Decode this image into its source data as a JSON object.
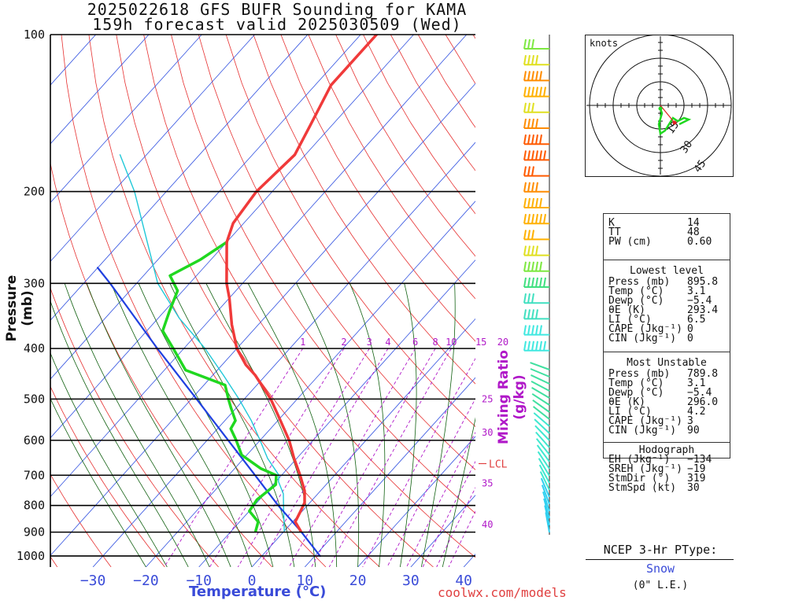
{
  "title_line1": "2025022618 GFS BUFR Sounding for KAMA",
  "title_line2": "159h forecast valid 2025030509 (Wed)",
  "credit": "coolwx.com/models",
  "chart_data": {
    "type": "skew-t",
    "ylabel": "Pressure (mb)",
    "xlabel": "Temperature (°C)",
    "mixing_ratio_label": "Mixing Ratio (g/kg)",
    "pressure_ticks": [
      "100",
      "200",
      "300",
      "400",
      "500",
      "600",
      "700",
      "800",
      "900",
      "1000"
    ],
    "pressure_levels": [
      100,
      200,
      300,
      400,
      500,
      600,
      700,
      800,
      900,
      1000
    ],
    "temp_ticks": [
      "−30",
      "−20",
      "−10",
      "0",
      "10",
      "20",
      "30",
      "40"
    ],
    "temp_values": [
      -30,
      -20,
      -10,
      0,
      10,
      20,
      30,
      40
    ],
    "mixing_ratio_top_labels": [
      "1",
      "2",
      "3",
      "4",
      "6",
      "8",
      "10",
      "15",
      "20"
    ],
    "mixing_ratio_side_labels": [
      "25",
      "30",
      "35",
      "40"
    ],
    "lcl_label": "LCL",
    "lcl_pressure": 665,
    "temperature_profile": [
      {
        "p": 895.8,
        "t": 3.1
      },
      {
        "p": 860,
        "t": 0.5
      },
      {
        "p": 825,
        "t": -0.2
      },
      {
        "p": 790,
        "t": -1.0
      },
      {
        "p": 750,
        "t": -3.0
      },
      {
        "p": 700,
        "t": -6.5
      },
      {
        "p": 650,
        "t": -10.5
      },
      {
        "p": 600,
        "t": -14.5
      },
      {
        "p": 550,
        "t": -19.5
      },
      {
        "p": 500,
        "t": -25
      },
      {
        "p": 450,
        "t": -32
      },
      {
        "p": 430,
        "t": -35.5
      },
      {
        "p": 400,
        "t": -40
      },
      {
        "p": 360,
        "t": -45
      },
      {
        "p": 320,
        "t": -50
      },
      {
        "p": 300,
        "t": -53
      },
      {
        "p": 250,
        "t": -60
      },
      {
        "p": 230,
        "t": -62
      },
      {
        "p": 200,
        "t": -63
      },
      {
        "p": 170,
        "t": -62
      },
      {
        "p": 150,
        "t": -64
      },
      {
        "p": 125,
        "t": -67
      },
      {
        "p": 100,
        "t": -67
      }
    ],
    "dewpoint_profile": [
      {
        "p": 895.8,
        "t": -5.4
      },
      {
        "p": 860,
        "t": -6.5
      },
      {
        "p": 820,
        "t": -10
      },
      {
        "p": 780,
        "t": -10.5
      },
      {
        "p": 730,
        "t": -9.5
      },
      {
        "p": 700,
        "t": -11
      },
      {
        "p": 680,
        "t": -15
      },
      {
        "p": 640,
        "t": -21
      },
      {
        "p": 600,
        "t": -24.5
      },
      {
        "p": 570,
        "t": -27.5
      },
      {
        "p": 550,
        "t": -28
      },
      {
        "p": 520,
        "t": -31
      },
      {
        "p": 500,
        "t": -33
      },
      {
        "p": 470,
        "t": -36
      },
      {
        "p": 440,
        "t": -46
      },
      {
        "p": 400,
        "t": -52
      },
      {
        "p": 370,
        "t": -57
      },
      {
        "p": 340,
        "t": -59
      },
      {
        "p": 310,
        "t": -61
      },
      {
        "p": 290,
        "t": -65
      },
      {
        "p": 270,
        "t": -62
      },
      {
        "p": 250,
        "t": -60
      }
    ],
    "wetbulb_profile": [
      {
        "p": 895.8,
        "t": 0.0
      },
      {
        "p": 800,
        "t": -4.5
      },
      {
        "p": 760,
        "t": -6.5
      },
      {
        "p": 720,
        "t": -9.5
      },
      {
        "p": 700,
        "t": -10.5
      },
      {
        "p": 650,
        "t": -15.5
      },
      {
        "p": 600,
        "t": -20
      },
      {
        "p": 550,
        "t": -25
      },
      {
        "p": 500,
        "t": -31
      },
      {
        "p": 450,
        "t": -38
      },
      {
        "p": 400,
        "t": -46
      },
      {
        "p": 350,
        "t": -56
      },
      {
        "p": 300,
        "t": -66
      },
      {
        "p": 250,
        "t": -75
      },
      {
        "p": 200,
        "t": -86
      },
      {
        "p": 170,
        "t": -95
      }
    ],
    "parcel_profile": [
      {
        "p": 1000,
        "t": 11
      },
      {
        "p": 895.8,
        "t": 3.1
      },
      {
        "p": 800,
        "t": -5.5
      },
      {
        "p": 700,
        "t": -15
      },
      {
        "p": 600,
        "t": -26
      },
      {
        "p": 500,
        "t": -39
      },
      {
        "p": 400,
        "t": -55
      },
      {
        "p": 300,
        "t": -75
      },
      {
        "p": 280,
        "t": -80
      }
    ],
    "wind_barbs": [
      {
        "color": "#7de840"
      },
      {
        "color": "#e0e020"
      },
      {
        "color": "#ff8c00"
      },
      {
        "color": "#ffb000"
      },
      {
        "color": "#e0e020"
      },
      {
        "color": "#ff8c00"
      },
      {
        "color": "#ff5a00"
      },
      {
        "color": "#ff5a00"
      },
      {
        "color": "#ff5a00"
      },
      {
        "color": "#ff8c00"
      },
      {
        "color": "#ffb000"
      },
      {
        "color": "#ffb000"
      },
      {
        "color": "#ffb000"
      },
      {
        "color": "#e0e020"
      },
      {
        "color": "#7de840"
      },
      {
        "color": "#40e080"
      },
      {
        "color": "#40e0c0"
      },
      {
        "color": "#40e0c0"
      },
      {
        "color": "#40e8e0"
      },
      {
        "color": "#40e8e0"
      }
    ],
    "hodograph": {
      "units_label": "knots",
      "ring_labels": [
        "15",
        "30",
        "45"
      ],
      "ring_values": [
        15,
        30,
        45
      ],
      "trace": [
        {
          "u": 0,
          "v": -2
        },
        {
          "u": 1,
          "v": -5
        },
        {
          "u": -1,
          "v": -12
        },
        {
          "u": 0,
          "v": -18
        },
        {
          "u": 3,
          "v": -16
        },
        {
          "u": 8,
          "v": -8
        },
        {
          "u": 11,
          "v": -10
        },
        {
          "u": 15,
          "v": -8
        },
        {
          "u": 18,
          "v": -9
        },
        {
          "u": 12,
          "v": -12
        }
      ],
      "storm_motion": {
        "u": 9,
        "v": -11
      }
    }
  },
  "indices": {
    "top": [
      {
        "k": "K",
        "v": "14"
      },
      {
        "k": "TT",
        "v": "48"
      },
      {
        "k": "PW (cm)",
        "v": "0.60"
      }
    ],
    "lowest_header": "Lowest level",
    "lowest": [
      {
        "k": "Press (mb)",
        "v": "895.8"
      },
      {
        "k": "Temp (°C)",
        "v": "3.1"
      },
      {
        "k": "Dewp (°C)",
        "v": "−5.4"
      },
      {
        "k": "θE (K)",
        "v": "293.4"
      },
      {
        "k": "LI (°C)",
        "v": "6.5"
      },
      {
        "k": "CAPE (Jkg⁻¹)",
        "v": "0"
      },
      {
        "k": "CIN (Jkg⁻¹)",
        "v": "0"
      }
    ],
    "mu_header": "Most Unstable",
    "mu": [
      {
        "k": "Press (mb)",
        "v": "789.8"
      },
      {
        "k": "Temp (°C)",
        "v": "3.1"
      },
      {
        "k": "Dewp (°C)",
        "v": "−5.4"
      },
      {
        "k": "θE (K)",
        "v": "296.0"
      },
      {
        "k": "LI (°C)",
        "v": "4.2"
      },
      {
        "k": "CAPE (Jkg⁻¹)",
        "v": "3"
      },
      {
        "k": "CIN (Jkg⁻¹)",
        "v": "90"
      }
    ],
    "hodo_header": "Hodograph",
    "hodo": [
      {
        "k": "EH (Jkg⁻¹)",
        "v": "−134"
      },
      {
        "k": "SREH (Jkg⁻¹)",
        "v": "−19"
      },
      {
        "k": "StmDir (°)",
        "v": "319"
      },
      {
        "k": "StmSpd (kt)",
        "v": "30"
      }
    ]
  },
  "ptype": {
    "header": "NCEP 3-Hr PType:",
    "value": "Snow",
    "accum": "(0\" L.E.)"
  }
}
